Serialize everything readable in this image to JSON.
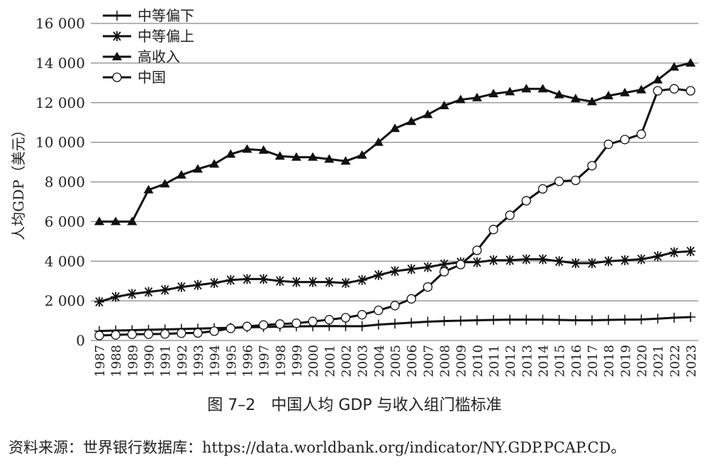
{
  "chart_data": {
    "type": "line",
    "title": "",
    "ylabel": "人均GDP（美元）",
    "xlabel": "",
    "ylim": [
      0,
      16000
    ],
    "yticks": [
      0,
      2000,
      4000,
      6000,
      8000,
      10000,
      12000,
      14000,
      16000
    ],
    "ytick_labels": [
      "0",
      "2 000",
      "4 000",
      "6 000",
      "8 000",
      "10 000",
      "12 000",
      "14 000",
      "16 000"
    ],
    "grid": "horizontal",
    "legend": "top-left",
    "x": [
      1987,
      1988,
      1989,
      1990,
      1991,
      1992,
      1993,
      1994,
      1995,
      1996,
      1997,
      1998,
      1999,
      2000,
      2001,
      2002,
      2003,
      2004,
      2005,
      2006,
      2007,
      2008,
      2009,
      2010,
      2011,
      2012,
      2013,
      2014,
      2015,
      2016,
      2017,
      2018,
      2019,
      2020,
      2021,
      2022,
      2023
    ],
    "series": [
      {
        "name": "中等偏下",
        "marker": "plus",
        "values": [
          480,
          500,
          520,
          540,
          560,
          580,
          600,
          620,
          640,
          660,
          680,
          700,
          710,
          720,
          730,
          720,
          720,
          800,
          850,
          900,
          950,
          980,
          1000,
          1020,
          1040,
          1050,
          1050,
          1050,
          1040,
          1020,
          1020,
          1040,
          1050,
          1060,
          1100,
          1150,
          1180
        ]
      },
      {
        "name": "中等偏上",
        "marker": "asterisk",
        "values": [
          1950,
          2200,
          2350,
          2450,
          2550,
          2700,
          2800,
          2900,
          3050,
          3100,
          3100,
          3000,
          2950,
          2950,
          2950,
          2900,
          3050,
          3300,
          3500,
          3600,
          3700,
          3850,
          3950,
          3950,
          4050,
          4050,
          4100,
          4100,
          4000,
          3900,
          3900,
          4000,
          4050,
          4100,
          4250,
          4450,
          4500
        ]
      },
      {
        "name": "高收入",
        "marker": "triangle",
        "values": [
          6000,
          6000,
          6000,
          7600,
          7900,
          8350,
          8650,
          8900,
          9400,
          9650,
          9600,
          9300,
          9250,
          9250,
          9150,
          9050,
          9350,
          10000,
          10700,
          11050,
          11400,
          11850,
          12150,
          12250,
          12450,
          12550,
          12700,
          12700,
          12400,
          12200,
          12050,
          12350,
          12500,
          12650,
          13150,
          13800,
          14000
        ]
      },
      {
        "name": "中国",
        "marker": "circle",
        "values": [
          250,
          280,
          310,
          320,
          330,
          370,
          380,
          470,
          610,
          710,
          780,
          830,
          870,
          960,
          1050,
          1150,
          1300,
          1520,
          1760,
          2100,
          2700,
          3470,
          3830,
          4550,
          5600,
          6320,
          7050,
          7650,
          8030,
          8080,
          8820,
          9900,
          10140,
          10410,
          12600,
          12700,
          12600
        ]
      }
    ]
  },
  "caption": "图 7–2　中国人均 GDP 与收入组门槛标准",
  "source": "资料来源：世界银行数据库：https://data.worldbank.org/indicator/NY.GDP.PCAP.CD。"
}
